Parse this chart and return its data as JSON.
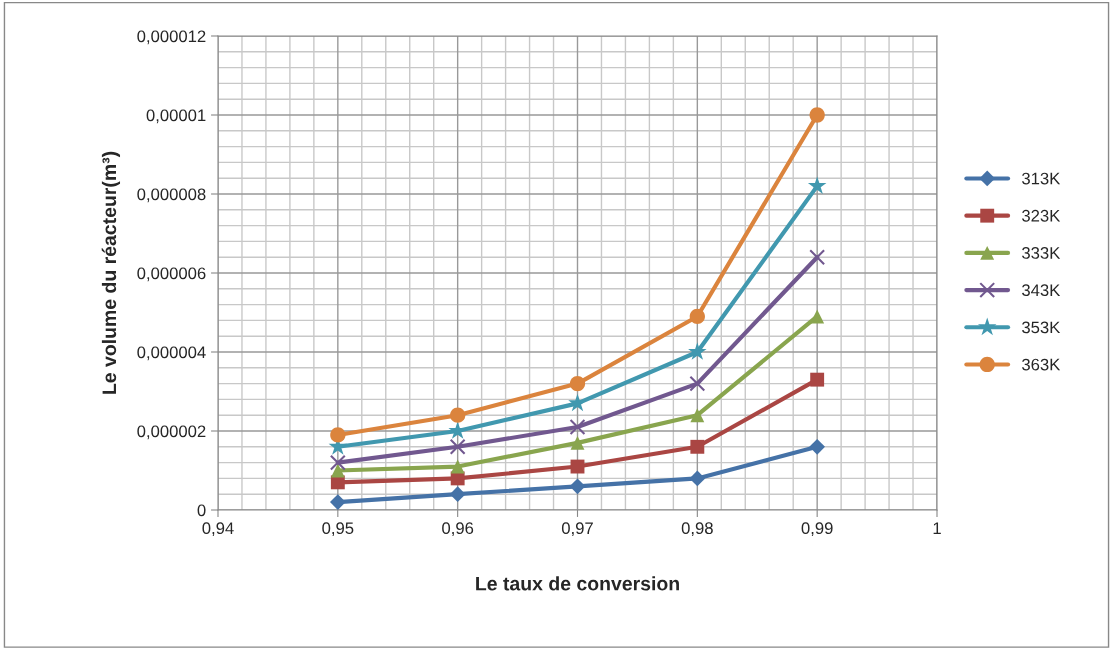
{
  "chart_data": {
    "type": "line",
    "xlabel": "Le taux de conversion",
    "ylabel": "Le volume du réacteur(m³)",
    "x": [
      0.95,
      0.96,
      0.97,
      0.98,
      0.99
    ],
    "series": [
      {
        "name": "313K",
        "color": "#4572a7",
        "marker": "diamond",
        "values": [
          2e-07,
          4e-07,
          6e-07,
          8e-07,
          1.6e-06
        ]
      },
      {
        "name": "323K",
        "color": "#aa4643",
        "marker": "square",
        "values": [
          7e-07,
          8e-07,
          1.1e-06,
          1.6e-06,
          3.3e-06
        ]
      },
      {
        "name": "333K",
        "color": "#89a54e",
        "marker": "triangle",
        "values": [
          1e-06,
          1.1e-06,
          1.7e-06,
          2.4e-06,
          4.9e-06
        ]
      },
      {
        "name": "343K",
        "color": "#71588f",
        "marker": "cross",
        "values": [
          1.2e-06,
          1.6e-06,
          2.1e-06,
          3.2e-06,
          6.4e-06
        ]
      },
      {
        "name": "353K",
        "color": "#4198af",
        "marker": "star",
        "values": [
          1.6e-06,
          2e-06,
          2.7e-06,
          4e-06,
          8.2e-06
        ]
      },
      {
        "name": "363K",
        "color": "#db843d",
        "marker": "circle",
        "values": [
          1.9e-06,
          2.4e-06,
          3.2e-06,
          4.9e-06,
          1e-05
        ]
      }
    ],
    "xlim": [
      0.94,
      1
    ],
    "xticks": [
      {
        "value": 0.94,
        "label": "0,94"
      },
      {
        "value": 0.95,
        "label": "0,95"
      },
      {
        "value": 0.96,
        "label": "0,96"
      },
      {
        "value": 0.97,
        "label": "0,97"
      },
      {
        "value": 0.98,
        "label": "0,98"
      },
      {
        "value": 0.99,
        "label": "0,99"
      },
      1
    ],
    "ylim": [
      0,
      1.2e-05
    ],
    "yticks": [
      0,
      {
        "value": 2e-06,
        "label": "0,000002"
      },
      {
        "value": 4e-06,
        "label": "0,000004"
      },
      {
        "value": 6e-06,
        "label": "0,000006"
      },
      {
        "value": 8e-06,
        "label": "0,000008"
      },
      {
        "value": 1e-05,
        "label": "0,00001"
      },
      {
        "value": 1.2e-05,
        "label": "0,000012"
      }
    ],
    "grid": true,
    "legend": "right",
    "line_style": "solid"
  }
}
